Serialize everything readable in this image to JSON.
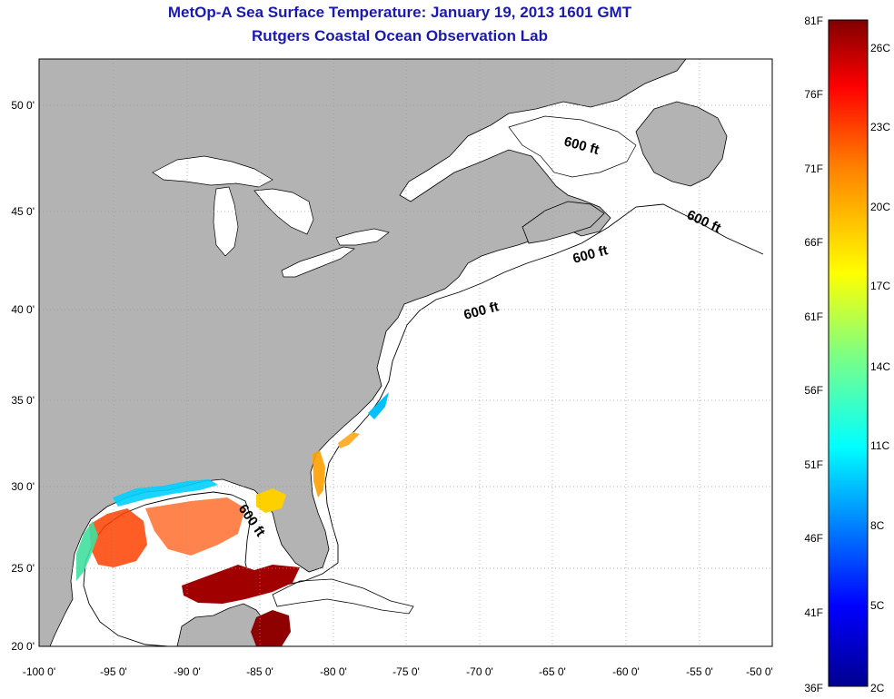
{
  "title": "MetOp-A Sea Surface Temperature:  January 19, 2013 1601 GMT",
  "subtitle": "Rutgers Coastal Ocean Observation Lab",
  "map": {
    "lon_range": [
      -100,
      -50
    ],
    "lat_range": [
      20,
      52.5
    ],
    "lon_ticks": [
      "-100 0'",
      "-95 0'",
      "-90 0'",
      "-85 0'",
      "-80 0'",
      "-75 0'",
      "-70 0'",
      "-65 0'",
      "-60 0'",
      "-55 0'",
      "-50 0'"
    ],
    "lat_ticks": [
      "50 0'",
      "45 0'",
      "40 0'",
      "35 0'",
      "30 0'",
      "25 0'",
      "20 0'"
    ],
    "grid": true,
    "land_color": "#b3b3b3",
    "contour_labels": [
      "600 ft",
      "600 ft",
      "600 ft",
      "600 ft",
      "600 ft"
    ]
  },
  "colorbar": {
    "f_labels": [
      "81F",
      "76F",
      "71F",
      "66F",
      "61F",
      "56F",
      "51F",
      "46F",
      "41F",
      "36F"
    ],
    "c_labels": [
      "26C",
      "23C",
      "20C",
      "17C",
      "14C",
      "11C",
      "8C",
      "5C",
      "2C"
    ],
    "colors": [
      "#00008f",
      "#0000ff",
      "#0080ff",
      "#00ffff",
      "#80ff80",
      "#ffff00",
      "#ff8000",
      "#ff0000",
      "#800000"
    ]
  }
}
